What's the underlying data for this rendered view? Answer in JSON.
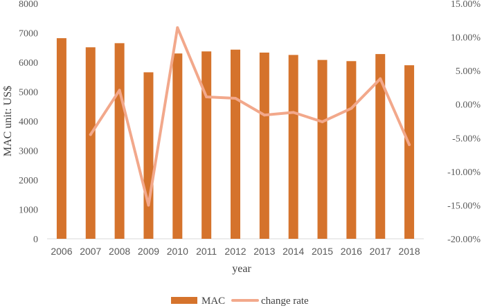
{
  "chart_data": {
    "type": "bar",
    "title": "",
    "categories": [
      "2006",
      "2007",
      "2008",
      "2009",
      "2010",
      "2011",
      "2012",
      "2013",
      "2014",
      "2015",
      "2016",
      "2017",
      "2018"
    ],
    "series": [
      {
        "name": "MAC",
        "type": "bar",
        "axis": "left",
        "color": "#d5732c",
        "values": [
          6820,
          6510,
          6650,
          5660,
          6300,
          6370,
          6430,
          6330,
          6250,
          6080,
          6040,
          6280,
          5900
        ]
      },
      {
        "name": "change rate",
        "type": "line",
        "axis": "right",
        "color": "#f2a88b",
        "values": [
          null,
          -4.5,
          2.1,
          -15.0,
          11.4,
          1.1,
          0.9,
          -1.6,
          -1.2,
          -2.6,
          -0.6,
          3.8,
          -6.0
        ]
      }
    ],
    "xlabel": "year",
    "ylabel": "MAC unit: US$",
    "ylim": [
      0,
      8000
    ],
    "y_ticks": [
      "0",
      "1000",
      "2000",
      "3000",
      "4000",
      "5000",
      "6000",
      "7000",
      "8000"
    ],
    "y2lim": [
      -20,
      15
    ],
    "y2_ticks": [
      "-20.00%",
      "-15.00%",
      "-10.00%",
      "-5.00%",
      "0.00%",
      "5.00%",
      "10.00%",
      "15.00%"
    ],
    "grid": false,
    "legend_position": "bottom"
  }
}
